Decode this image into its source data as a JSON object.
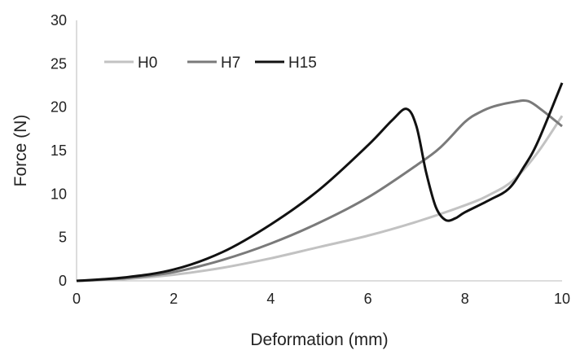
{
  "chart_data": {
    "type": "line",
    "xlabel": "Deformation (mm)",
    "ylabel": "Force (N)",
    "xlim": [
      0,
      10
    ],
    "ylim": [
      0,
      30
    ],
    "x_ticks": [
      "0",
      "2",
      "4",
      "6",
      "8",
      "10"
    ],
    "y_ticks": [
      "0",
      "5",
      "10",
      "15",
      "20",
      "25",
      "30"
    ],
    "grid": false,
    "legend_position": "top-left",
    "series": [
      {
        "name": "H0",
        "color": "#c2c2c2",
        "points": [
          [
            0,
            0
          ],
          [
            1,
            0.2
          ],
          [
            2,
            0.7
          ],
          [
            3,
            1.5
          ],
          [
            4,
            2.6
          ],
          [
            5,
            3.9
          ],
          [
            6,
            5.2
          ],
          [
            7,
            6.8
          ],
          [
            8,
            8.7
          ],
          [
            8.5,
            9.9
          ],
          [
            9,
            11.6
          ],
          [
            9.5,
            14.8
          ],
          [
            10,
            19.0
          ]
        ]
      },
      {
        "name": "H7",
        "color": "#7a7a7a",
        "points": [
          [
            0,
            0
          ],
          [
            1,
            0.3
          ],
          [
            2,
            1.0
          ],
          [
            3,
            2.4
          ],
          [
            4,
            4.3
          ],
          [
            5,
            6.7
          ],
          [
            6,
            9.6
          ],
          [
            7,
            13.3
          ],
          [
            7.5,
            15.4
          ],
          [
            8,
            18.3
          ],
          [
            8.3,
            19.4
          ],
          [
            8.6,
            20.1
          ],
          [
            9,
            20.6
          ],
          [
            9.3,
            20.7
          ],
          [
            9.6,
            19.6
          ],
          [
            10,
            17.8
          ]
        ]
      },
      {
        "name": "H15",
        "color": "#111111",
        "points": [
          [
            0,
            0
          ],
          [
            1,
            0.4
          ],
          [
            2,
            1.3
          ],
          [
            3,
            3.3
          ],
          [
            4,
            6.5
          ],
          [
            5,
            10.5
          ],
          [
            6,
            15.6
          ],
          [
            6.5,
            18.5
          ],
          [
            6.8,
            19.8
          ],
          [
            7.0,
            17.8
          ],
          [
            7.2,
            12.5
          ],
          [
            7.4,
            8.5
          ],
          [
            7.6,
            7.0
          ],
          [
            7.8,
            7.2
          ],
          [
            8,
            7.9
          ],
          [
            8.5,
            9.3
          ],
          [
            8.9,
            10.6
          ],
          [
            9.2,
            13.0
          ],
          [
            9.5,
            16.0
          ],
          [
            10,
            22.8
          ]
        ]
      }
    ]
  }
}
